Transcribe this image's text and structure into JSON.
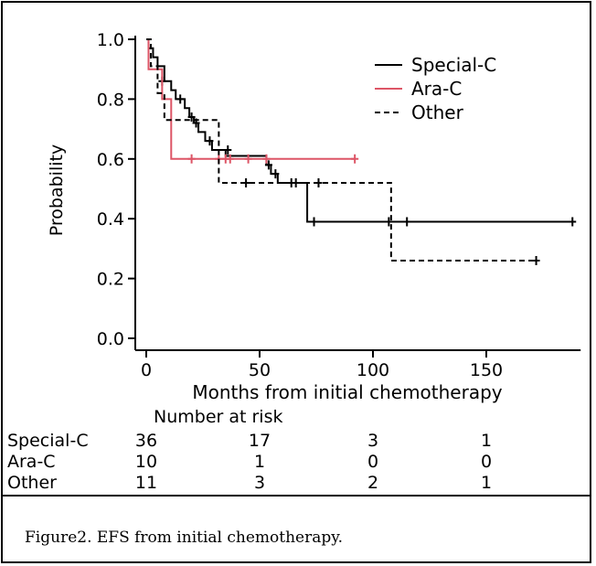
{
  "chart_data": {
    "type": "line",
    "title": "",
    "xlabel": "Months from initial chemotherapy",
    "ylabel": "Probability",
    "xlim": [
      -5,
      190
    ],
    "ylim": [
      0,
      1.0
    ],
    "x_ticks": [
      0,
      50,
      100,
      150
    ],
    "x_tick_labels": [
      "0",
      "50",
      "100",
      "150"
    ],
    "y_ticks": [
      0,
      0.2,
      0.4,
      0.6,
      0.8,
      1.0
    ],
    "y_tick_labels": [
      "0.0",
      "0.2",
      "0.4",
      "0.6",
      "0.8",
      "1.0"
    ],
    "legend_position": "top-right",
    "series": [
      {
        "name": "Special-C",
        "color": "#000000",
        "dash": "solid",
        "steps": [
          [
            0,
            1.0
          ],
          [
            1,
            0.97
          ],
          [
            3,
            0.94
          ],
          [
            5,
            0.91
          ],
          [
            8,
            0.86
          ],
          [
            11,
            0.83
          ],
          [
            13,
            0.8
          ],
          [
            17,
            0.77
          ],
          [
            19,
            0.74
          ],
          [
            21,
            0.72
          ],
          [
            23,
            0.69
          ],
          [
            26,
            0.66
          ],
          [
            29,
            0.63
          ],
          [
            32,
            0.63
          ],
          [
            35,
            0.61
          ],
          [
            40,
            0.61
          ],
          [
            51,
            0.61
          ],
          [
            53,
            0.58
          ],
          [
            55,
            0.55
          ],
          [
            58,
            0.52
          ],
          [
            70,
            0.52
          ],
          [
            71,
            0.39
          ],
          [
            188,
            0.39
          ]
        ],
        "censors": [
          [
            7,
            0.86
          ],
          [
            15,
            0.8
          ],
          [
            20,
            0.74
          ],
          [
            22,
            0.72
          ],
          [
            28,
            0.66
          ],
          [
            36,
            0.63
          ],
          [
            54,
            0.58
          ],
          [
            57,
            0.55
          ],
          [
            64,
            0.52
          ],
          [
            66,
            0.52
          ],
          [
            74,
            0.39
          ],
          [
            107,
            0.39
          ],
          [
            115,
            0.39
          ],
          [
            188,
            0.39
          ]
        ]
      },
      {
        "name": "Ara-C",
        "color": "#dd5566",
        "dash": "solid",
        "steps": [
          [
            0,
            1.0
          ],
          [
            1,
            0.9
          ],
          [
            5,
            0.9
          ],
          [
            7,
            0.8
          ],
          [
            10,
            0.8
          ],
          [
            11,
            0.6
          ],
          [
            92,
            0.6
          ]
        ],
        "censors": [
          [
            20,
            0.6
          ],
          [
            32,
            0.6
          ],
          [
            35,
            0.6
          ],
          [
            37,
            0.6
          ],
          [
            45,
            0.6
          ],
          [
            53,
            0.6
          ],
          [
            92,
            0.6
          ]
        ]
      },
      {
        "name": "Other",
        "color": "#000000",
        "dash": "dashed",
        "steps": [
          [
            0,
            1.0
          ],
          [
            2,
            0.91
          ],
          [
            5,
            0.82
          ],
          [
            8,
            0.73
          ],
          [
            31,
            0.73
          ],
          [
            32,
            0.52
          ],
          [
            107,
            0.52
          ],
          [
            108,
            0.26
          ],
          [
            172,
            0.26
          ]
        ],
        "censors": [
          [
            44,
            0.52
          ],
          [
            76,
            0.52
          ],
          [
            172,
            0.26
          ]
        ]
      }
    ],
    "risk_table": {
      "title": "Number at risk",
      "time_points": [
        0,
        50,
        100,
        150
      ],
      "rows": [
        {
          "label": "Special-C",
          "values": [
            "36",
            "17",
            "3",
            "1"
          ]
        },
        {
          "label": "Ara-C",
          "values": [
            "10",
            "1",
            "0",
            "0"
          ]
        },
        {
          "label": "Other",
          "values": [
            "11",
            "3",
            "2",
            "1"
          ]
        }
      ]
    }
  },
  "caption": "Figure2. EFS from initial chemotherapy."
}
